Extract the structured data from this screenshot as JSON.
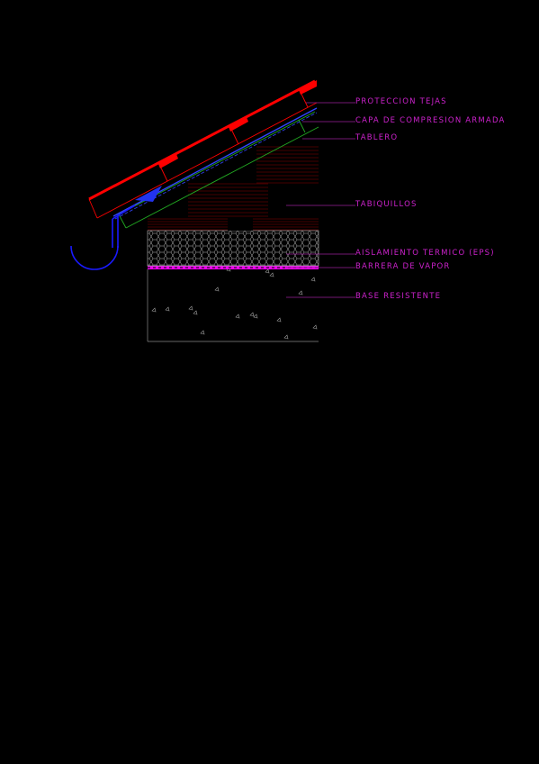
{
  "colors": {
    "background": "#000000",
    "label": "#cc22cc",
    "leader": "#992299",
    "tile": "#ff0000",
    "compression": "#3344ff",
    "board": "#22aa22",
    "brick": "#8b0000",
    "insulation": "#bbbbbb",
    "vapor": "#ee00ee",
    "concrete": "#999999",
    "gutter": "#1a1aff"
  },
  "labels": {
    "proteccion_tejas": "PROTECCION TEJAS",
    "capa_compresion": "CAPA DE COMPRESION ARMADA",
    "tablero": "TABLERO",
    "tabiquillos": "TABIQUILLOS",
    "aislamiento": "AISLAMIENTO TERMICO (EPS)",
    "barrera_vapor": "BARRERA DE VAPOR",
    "base_resistente": "BASE RESISTENTE"
  }
}
